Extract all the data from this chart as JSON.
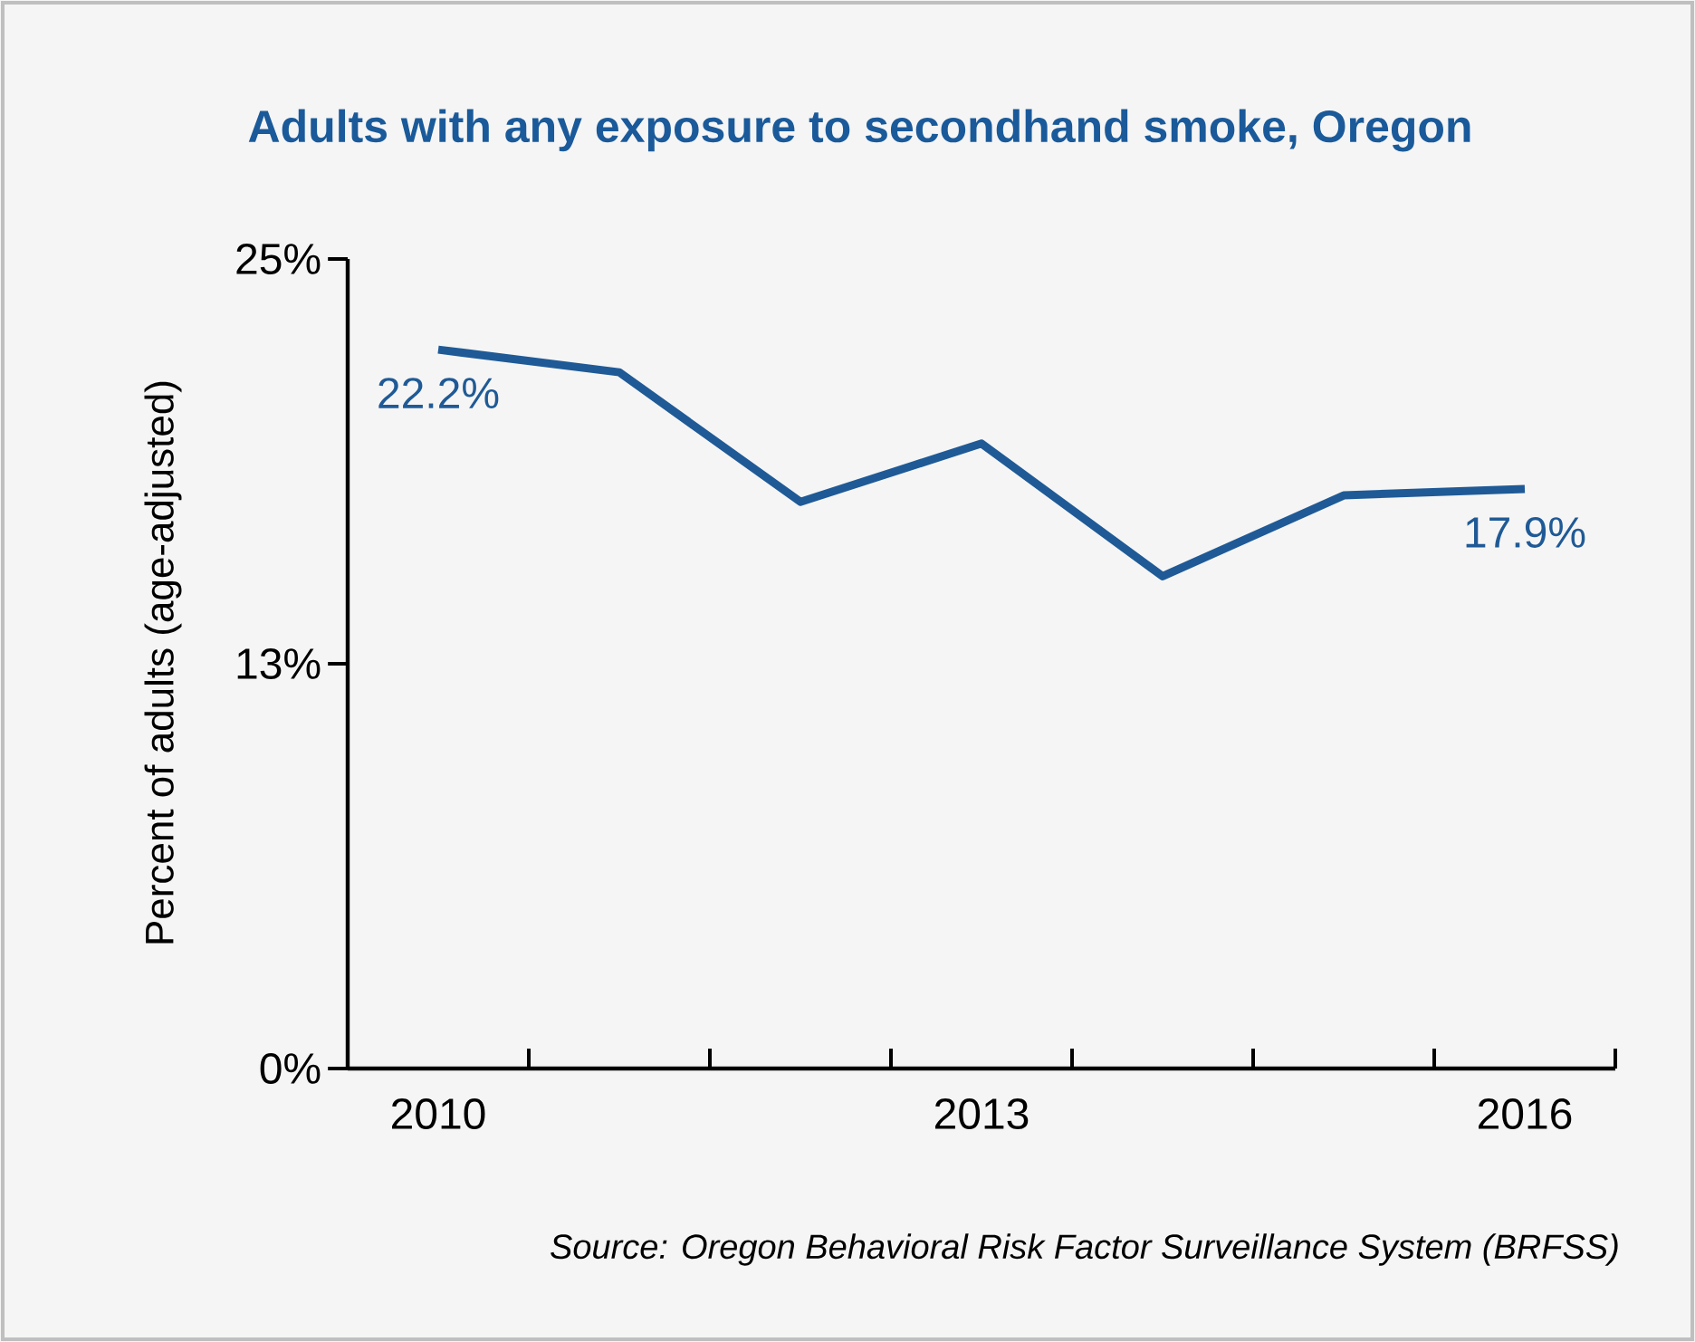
{
  "chart_data": {
    "type": "line",
    "title": "Adults with any exposure to secondhand smoke, Oregon",
    "ylabel": "Percent of adults (age-adjusted)",
    "x": [
      2010,
      2011,
      2012,
      2013,
      2014,
      2015,
      2016
    ],
    "values": [
      22.2,
      21.5,
      17.5,
      19.3,
      15.2,
      17.7,
      17.9
    ],
    "value_labels": [
      "22.2%",
      null,
      null,
      null,
      null,
      null,
      "17.9%"
    ],
    "color": "#1f5a96",
    "xlim": [
      2009.5,
      2016.5
    ],
    "ylim": [
      0,
      25
    ],
    "xticks": [
      {
        "value": 2010,
        "label": "2010"
      },
      {
        "value": 2013,
        "label": "2013"
      },
      {
        "value": 2016,
        "label": "2016"
      },
      {
        "value": 2010.5,
        "label": null
      },
      {
        "value": 2011.5,
        "label": null
      },
      {
        "value": 2012.5,
        "label": null
      },
      {
        "value": 2013.5,
        "label": null
      },
      {
        "value": 2014.5,
        "label": null
      },
      {
        "value": 2015.5,
        "label": null
      },
      {
        "value": 2016.5,
        "label": null
      }
    ],
    "yticks": [
      {
        "value": 0,
        "label": "0%"
      },
      {
        "value": 12.5,
        "label": "13%"
      },
      {
        "value": 25,
        "label": "25%"
      }
    ],
    "annotations": [
      "Source: Oregon Behavioral Risk Factor Surveillance System (BRFSS)"
    ]
  }
}
